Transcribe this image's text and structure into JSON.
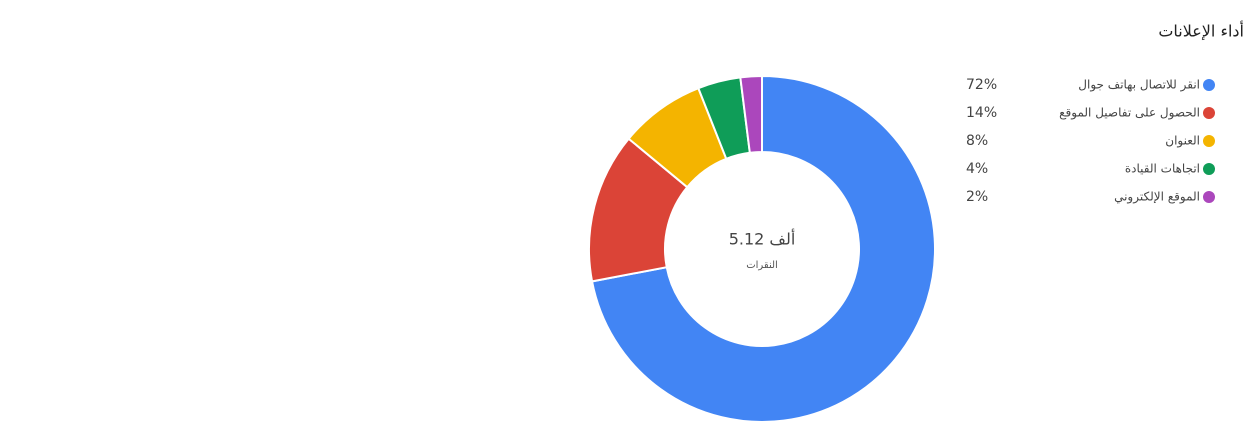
{
  "chart_data": {
    "type": "donut",
    "title": "أداء الإعلانات",
    "center_value": "5.12 ألف",
    "center_label": "النقرات",
    "categories": [
      "انقر للاتصال بهاتف جوال",
      "الحصول على تفاصيل الموقع",
      "العنوان",
      "اتجاهات القيادة",
      "الموقع الإلكتروني"
    ],
    "values": [
      72,
      14,
      8,
      4,
      2
    ],
    "value_labels": [
      "72%",
      "14%",
      "8%",
      "4%",
      "2%"
    ],
    "colors": [
      "#4285f4",
      "#db4437",
      "#f4b400",
      "#0f9d58",
      "#ab47bc"
    ],
    "legend": "right"
  }
}
